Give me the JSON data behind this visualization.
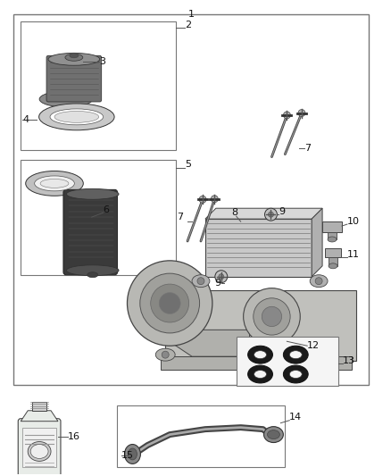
{
  "bg_color": "#ffffff",
  "border_color": "#777777",
  "fig_width": 4.38,
  "fig_height": 5.33,
  "dpi": 100,
  "font_size": 8,
  "line_color": "#444444",
  "gray_light": "#d0d0d0",
  "gray_mid": "#a0a0a0",
  "gray_dark": "#606060",
  "gray_vdark": "#2a2a2a"
}
